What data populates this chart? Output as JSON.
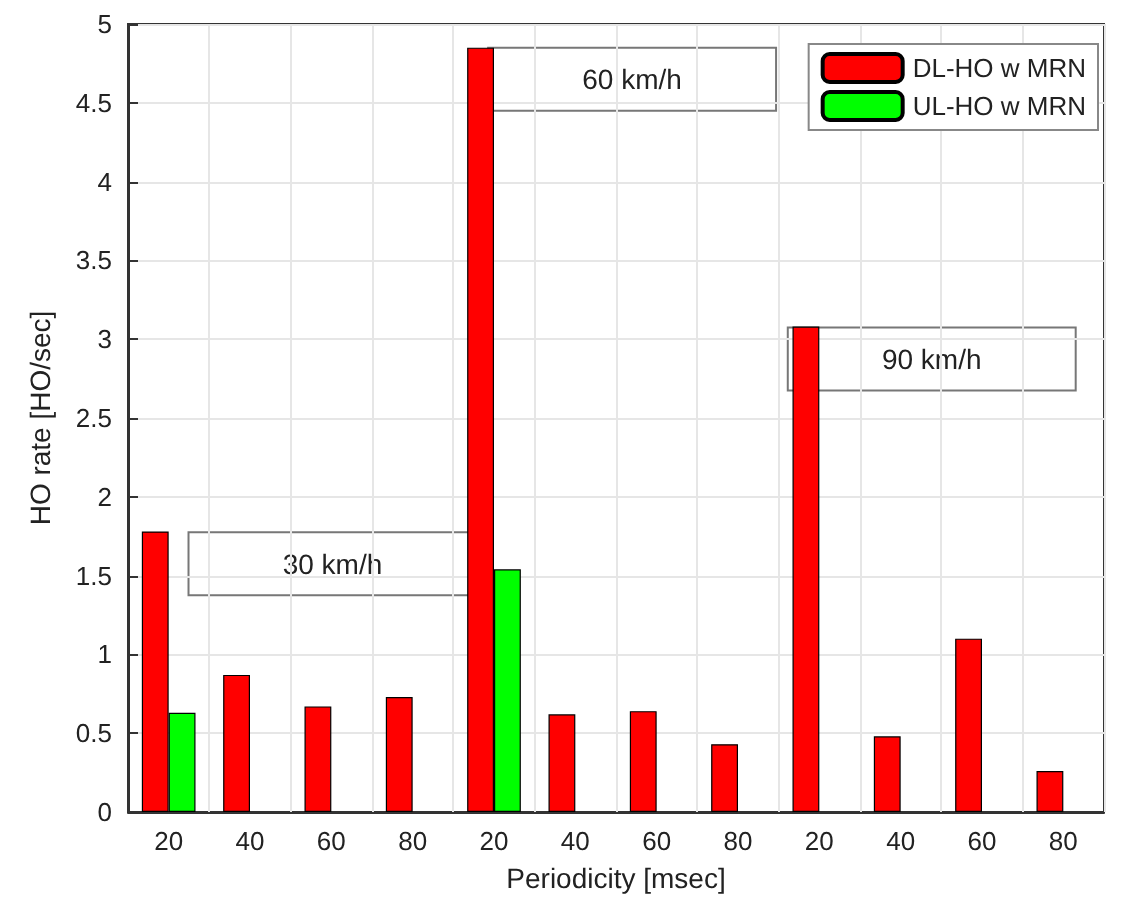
{
  "chart_data": {
    "type": "bar",
    "xlabel": "Periodicity [msec]",
    "ylabel": "HO rate [HO/sec]",
    "categories": [
      "20",
      "40",
      "60",
      "80",
      "20",
      "40",
      "60",
      "80",
      "20",
      "40",
      "60",
      "80"
    ],
    "series": [
      {
        "name": "DL-HO w MRN",
        "color": "#ff0000",
        "values": [
          1.78,
          0.87,
          0.67,
          0.73,
          4.85,
          0.62,
          0.64,
          0.43,
          3.08,
          0.48,
          1.1,
          0.26
        ]
      },
      {
        "name": "UL-HO w MRN",
        "color": "#00ff00",
        "values": [
          0.63,
          null,
          null,
          null,
          1.54,
          null,
          null,
          null,
          null,
          null,
          null,
          null
        ]
      }
    ],
    "annotations": [
      "30 km/h",
      "60 km/h",
      "90 km/h"
    ],
    "ylim": [
      0,
      5
    ],
    "yticks": [
      0,
      0.5,
      1,
      1.5,
      2,
      2.5,
      3,
      3.5,
      4,
      4.5,
      5
    ],
    "grid": true,
    "legend": "top right"
  }
}
